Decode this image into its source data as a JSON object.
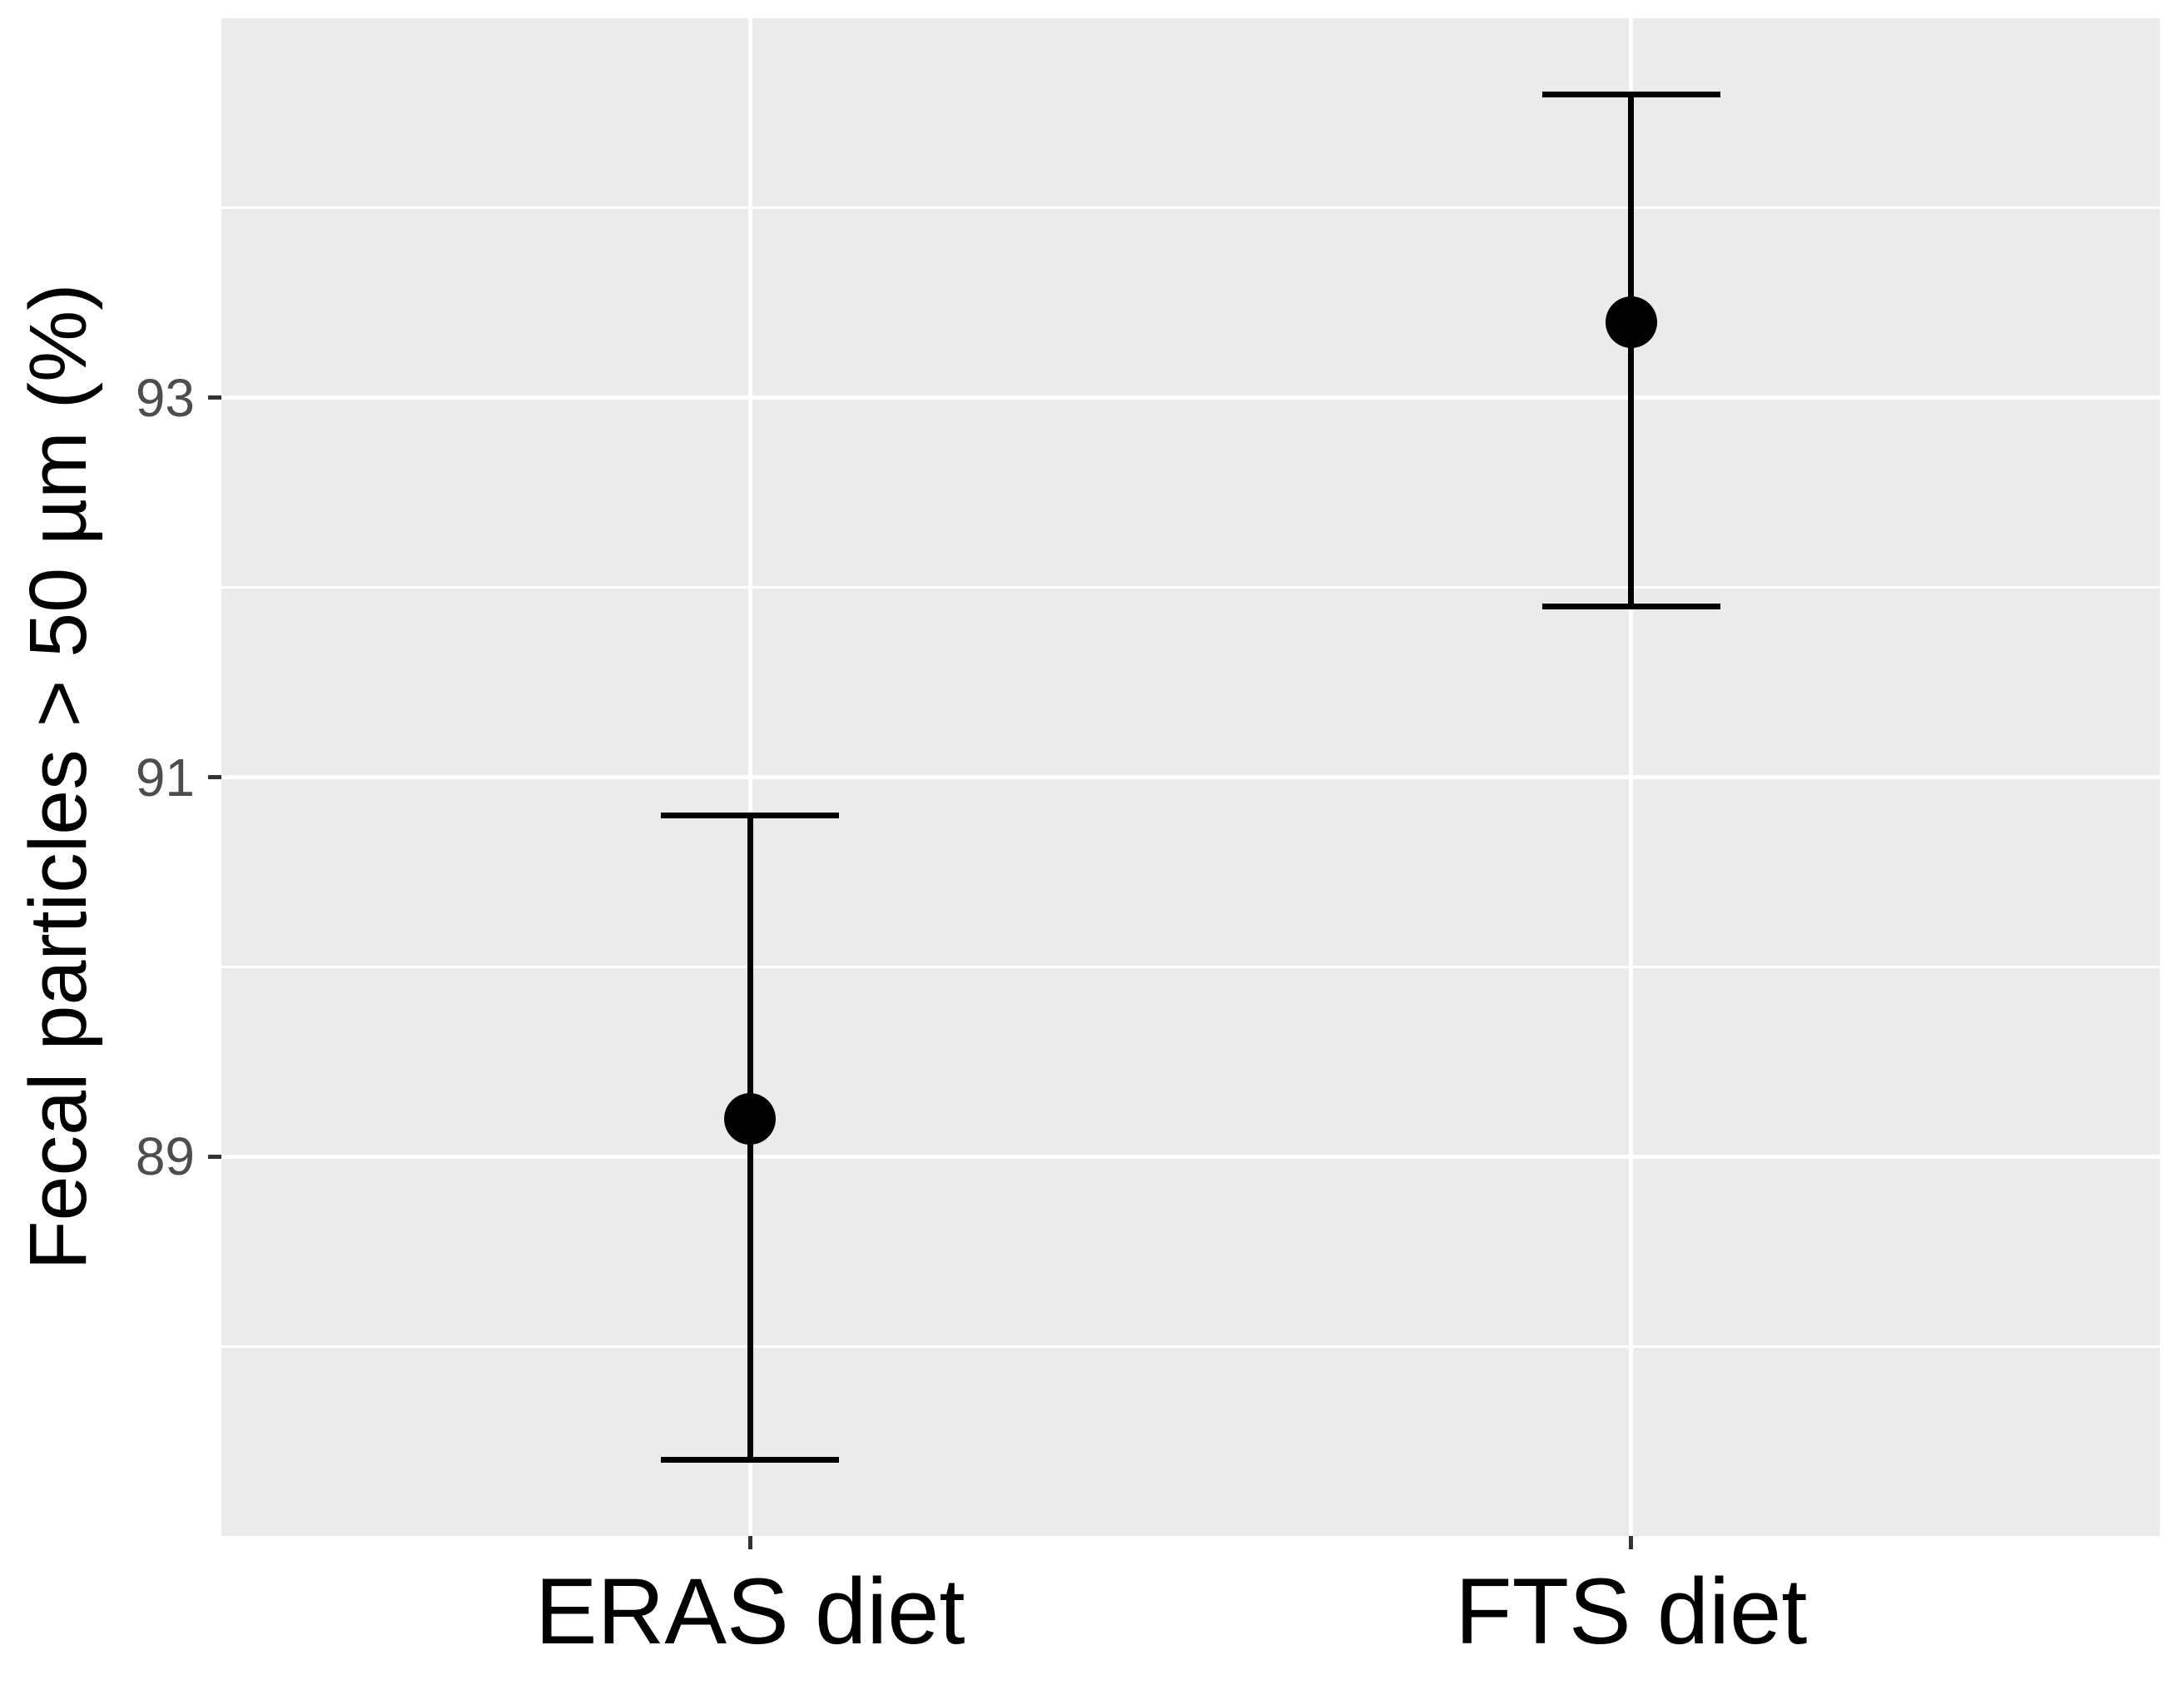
{
  "chart_data": {
    "type": "scatter",
    "subtype": "point-estimates-with-error-bars",
    "title": "",
    "xlabel": "",
    "ylabel": "Fecal particles > 50 µm (%)",
    "categories": [
      "ERAS diet",
      "FTS diet"
    ],
    "series": [
      {
        "name": "mean",
        "values": [
          89.2,
          93.4
        ]
      },
      {
        "name": "lower",
        "values": [
          87.4,
          91.9
        ]
      },
      {
        "name": "upper",
        "values": [
          90.8,
          94.6
        ]
      }
    ],
    "ylim": [
      87.0,
      95.0
    ],
    "yticks_major": [
      89,
      91,
      93
    ],
    "yticks_minor": [
      88,
      90,
      92,
      94
    ],
    "ytick_labels": [
      "89",
      "91",
      "93"
    ],
    "grid": "white major and minor horizontal gridlines plus vertical category gridlines on grey panel",
    "legend_position": "none",
    "colors": {
      "point": "#000000",
      "error_bar": "#000000",
      "panel_background": "#EBEBEB",
      "gridline": "#FFFFFF",
      "y_tick_text": "#4D4D4D",
      "x_tick_text": "#000000",
      "axis_title_text": "#000000",
      "tick_mark": "#333333"
    }
  }
}
